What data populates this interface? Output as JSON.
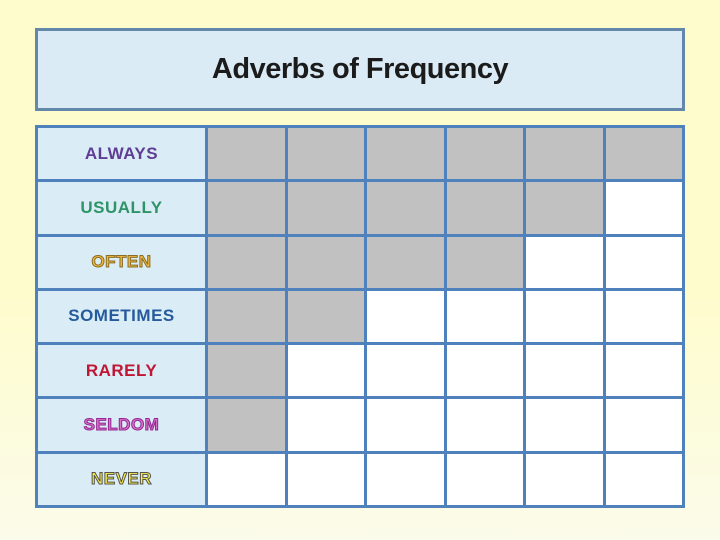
{
  "page": {
    "background_top_color": "#fefccd",
    "background_bottom_color": "#fbfbea"
  },
  "title": {
    "text": "Adverbs of Frequency",
    "box_fill": "#dbebf6",
    "box_border_color": "#6488ab",
    "text_color": "#1b1b1b"
  },
  "table": {
    "columns": 6,
    "grid_border_color": "#4f81bd",
    "label_cell_fill": "#daedf7",
    "filled_cell_color": "#c1c1c1",
    "empty_cell_color": "#ffffff",
    "rows": [
      {
        "label": "ALWAYS",
        "color": "#5f3d94",
        "outline": "",
        "filled": 6
      },
      {
        "label": "USUALLY",
        "color": "#2e9467",
        "outline": "",
        "filled": 5
      },
      {
        "label": "OFTEN",
        "color": "#f0b93c",
        "outline": "#8a6d26",
        "filled": 4
      },
      {
        "label": "SOMETIMES",
        "color": "#265a9c",
        "outline": "",
        "filled": 2
      },
      {
        "label": "RARELY",
        "color": "#c01634",
        "outline": "",
        "filled": 1
      },
      {
        "label": "SELDOM",
        "color": "#d873cc",
        "outline": "#93278f",
        "filled": 1
      },
      {
        "label": "NEVER",
        "color": "#f8ee4e",
        "outline": "#55524a",
        "filled": 0
      }
    ]
  },
  "chart_data": {
    "type": "bar",
    "orientation": "horizontal",
    "title": "Adverbs of Frequency",
    "categories": [
      "ALWAYS",
      "USUALLY",
      "OFTEN",
      "SOMETIMES",
      "RARELY",
      "SELDOM",
      "NEVER"
    ],
    "values": [
      6,
      5,
      4,
      2,
      1,
      1,
      0
    ],
    "xlabel": "",
    "ylabel": "",
    "xlim": [
      0,
      6
    ],
    "value_unit": "filled grid cells out of 6",
    "grid": true,
    "legend": false,
    "bar_color": "#c1c1c1"
  }
}
